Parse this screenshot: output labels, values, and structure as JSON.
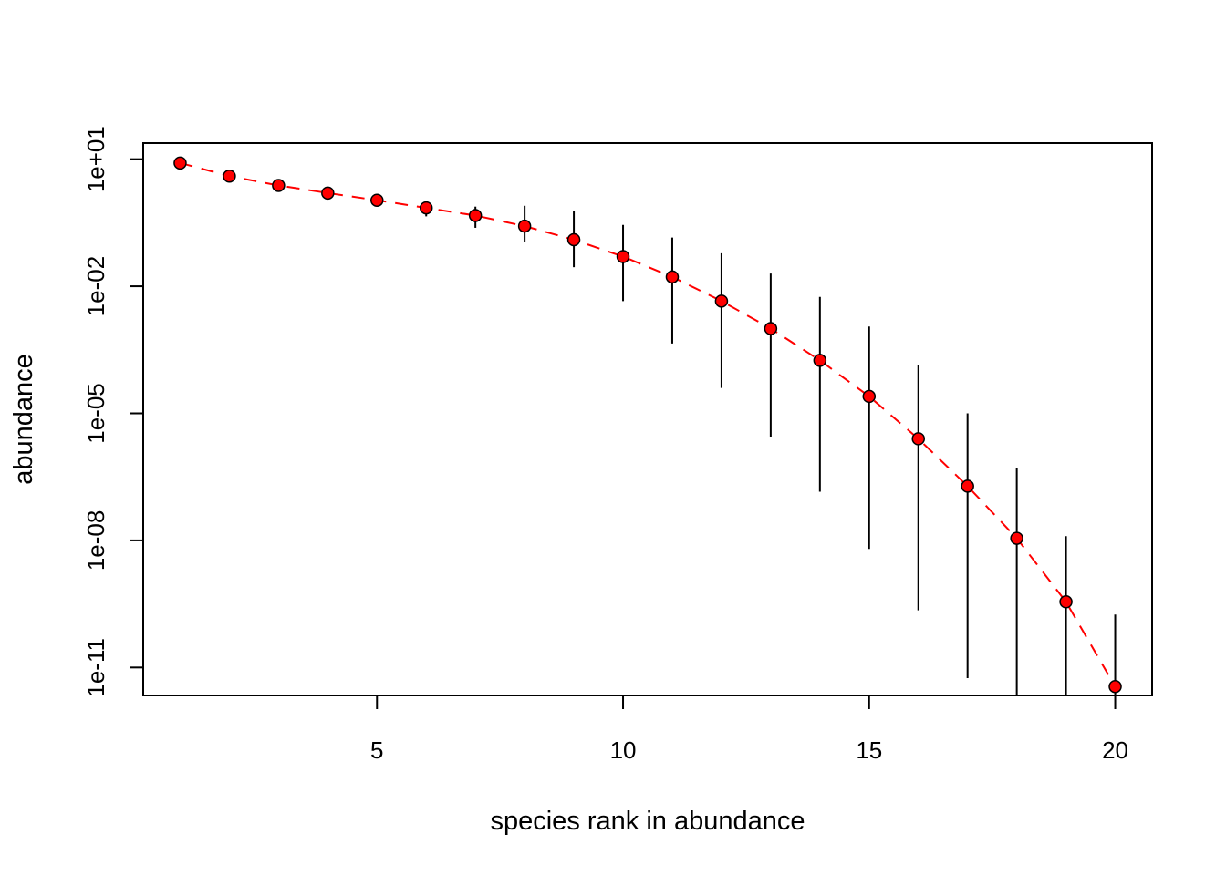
{
  "chart_data": {
    "type": "scatter",
    "title": "",
    "xlabel": "species rank in abundance",
    "ylabel": "abundance",
    "x_scale": "linear",
    "y_scale": "log10",
    "xlim": [
      0.25,
      20.75
    ],
    "ylim_log10": [
      -11.66,
      1.38
    ],
    "x_ticks": [
      5,
      10,
      15,
      20
    ],
    "x_tick_labels": [
      "5",
      "10",
      "15",
      "20"
    ],
    "y_ticks_log10": [
      1,
      -2,
      -5,
      -8,
      -11
    ],
    "y_tick_labels": [
      "1e+01",
      "1e-02",
      "1e-05",
      "1e-08",
      "1e-11"
    ],
    "grid": false,
    "legend": "none",
    "colors": {
      "points": "#ff0000",
      "point_outline": "#000000",
      "line": "#ff0000",
      "error_bars": "#000000"
    },
    "series": [
      {
        "x": [
          1,
          2,
          3,
          4,
          5,
          6,
          7,
          8,
          9,
          10,
          11,
          12,
          13,
          14,
          15,
          16,
          17,
          18,
          19,
          20
        ],
        "log10_values": [
          0.91,
          0.6,
          0.38,
          0.2,
          0.03,
          -0.15,
          -0.33,
          -0.58,
          -0.9,
          -1.3,
          -1.78,
          -2.35,
          -3.0,
          -3.75,
          -4.6,
          -5.6,
          -6.72,
          -7.95,
          -9.45,
          -11.45
        ],
        "log10_lower": [
          0.8,
          0.55,
          0.33,
          0.12,
          -0.05,
          -0.35,
          -0.62,
          -0.95,
          -1.55,
          -2.35,
          -3.35,
          -4.4,
          -5.55,
          -6.85,
          -8.2,
          -9.65,
          -11.25,
          -12.5,
          -13.0,
          -13.0
        ],
        "log10_upper": [
          0.98,
          0.65,
          0.43,
          0.28,
          0.1,
          0.02,
          -0.12,
          -0.1,
          -0.22,
          -0.55,
          -0.85,
          -1.22,
          -1.7,
          -2.25,
          -2.95,
          -3.85,
          -5.0,
          -6.3,
          -7.9,
          -9.75
        ]
      }
    ]
  }
}
